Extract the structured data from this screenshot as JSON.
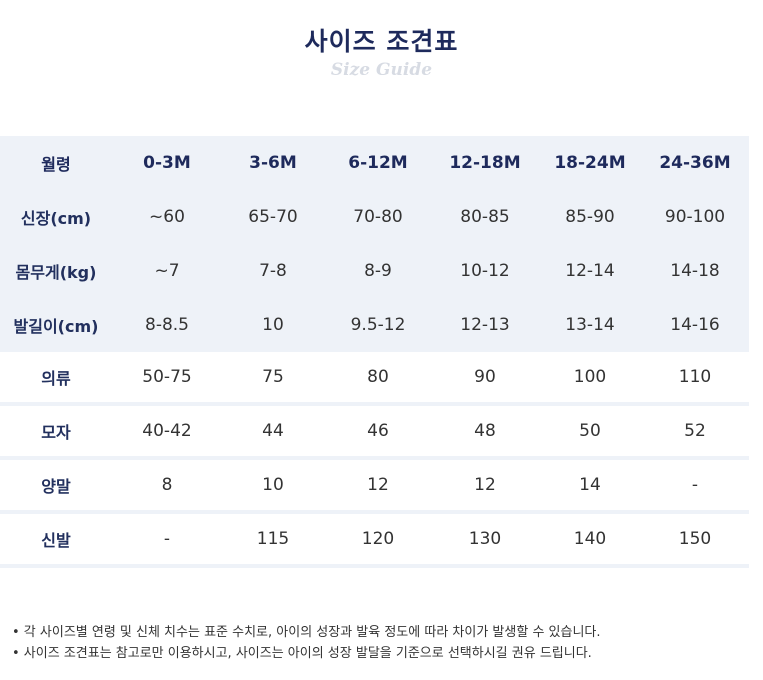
{
  "title": "사이즈 조견표",
  "subtitle": "Size Guide",
  "table": {
    "header": [
      "월령",
      "0-3M",
      "3-6M",
      "6-12M",
      "12-18M",
      "18-24M",
      "24-36M"
    ],
    "band_rows": [
      [
        "신장(cm)",
        "~60",
        "65-70",
        "70-80",
        "80-85",
        "85-90",
        "90-100"
      ],
      [
        "몸무게(kg)",
        "~7",
        "7-8",
        "8-9",
        "10-12",
        "12-14",
        "14-18"
      ],
      [
        "발길이(cm)",
        "8-8.5",
        "10",
        "9.5-12",
        "12-13",
        "13-14",
        "14-16"
      ]
    ],
    "item_rows": [
      [
        "의류",
        "50-75",
        "75",
        "80",
        "90",
        "100",
        "110"
      ],
      [
        "모자",
        "40-42",
        "44",
        "46",
        "48",
        "50",
        "52"
      ],
      [
        "양말",
        "8",
        "10",
        "12",
        "12",
        "14",
        "-"
      ],
      [
        "신발",
        "-",
        "115",
        "120",
        "130",
        "140",
        "150"
      ]
    ]
  },
  "notes": [
    "• 각 사이즈별 연령 및 신체 치수는 표준 수치로, 아이의 성장과 발육 정도에 따라 차이가 발생할 수 있습니다.",
    "• 사이즈 조견표는 참고로만 이용하시고, 사이즈는 아이의 성장 발달을 기준으로 선택하시길 권유 드립니다."
  ],
  "colors": {
    "navy": "#1e2a5c",
    "band": "#eef2f8",
    "text": "#333333"
  }
}
